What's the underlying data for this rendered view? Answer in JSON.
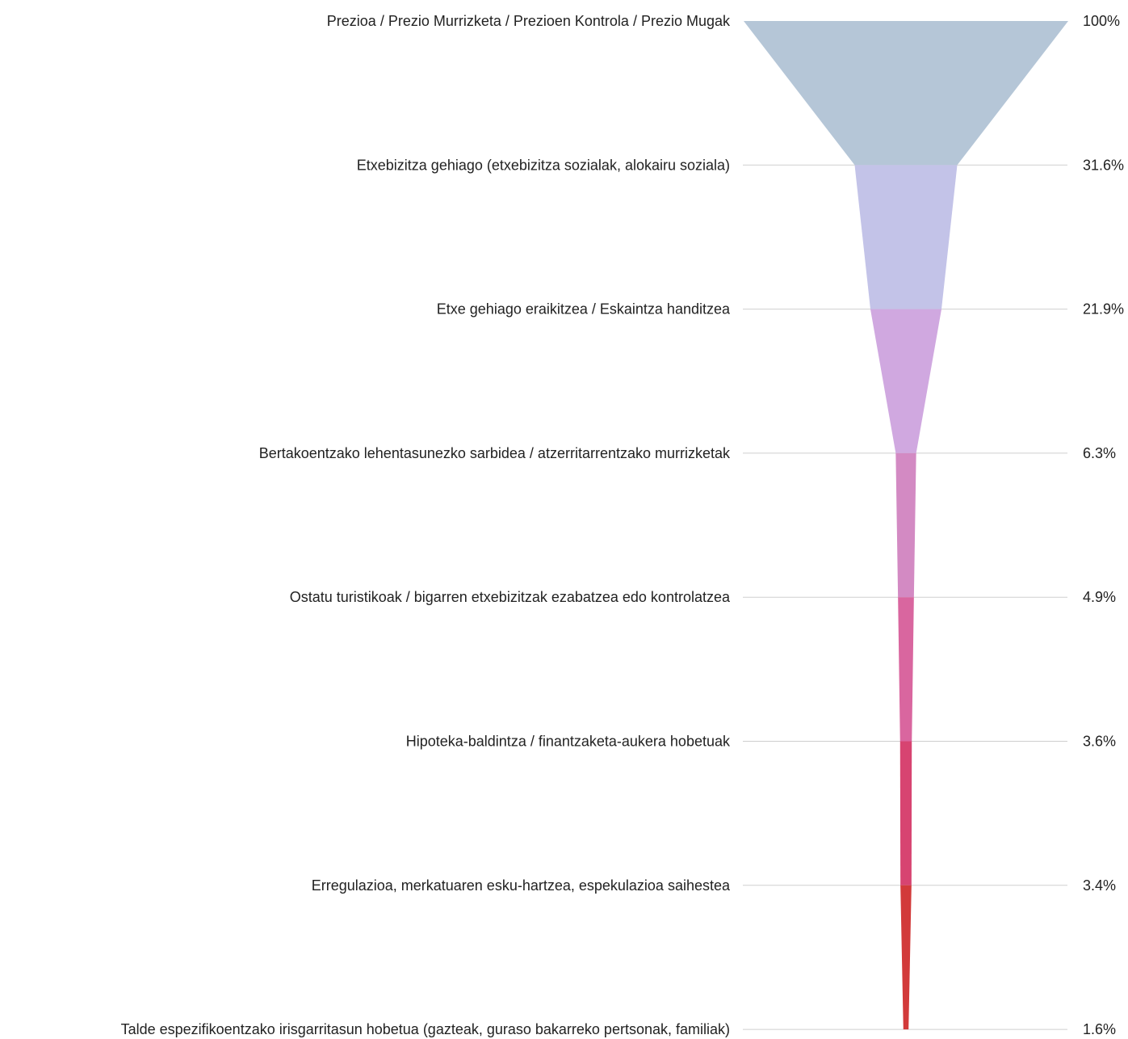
{
  "chart_data": {
    "type": "funnel",
    "title": "",
    "categories": [
      "Prezioa / Prezio Murrizketa / Prezioen Kontrola / Prezio Mugak",
      "Etxebizitza gehiago (etxebizitza sozialak, alokairu soziala)",
      "Etxe gehiago eraikitzea / Eskaintza handitzea",
      "Bertakoentzako lehentasunezko sarbidea / atzerritarrentzako murrizketak",
      "Ostatu turistikoak / bigarren etxebizitzak ezabatzea edo kontrolatzea",
      "Hipoteka-baldintza / finantzaketa-aukera hobetuak",
      "Erregulazioa, merkatuaren esku-hartzea, espekulazioa saihestea",
      "Talde espezifikoentzako irisgarritasun hobetua (gazteak, guraso bakarreko pertsonak, familiak)"
    ],
    "values": [
      100,
      31.6,
      21.9,
      6.3,
      4.9,
      3.6,
      3.4,
      1.6
    ],
    "value_labels": [
      "100%",
      "31.6%",
      "21.9%",
      "6.3%",
      "4.9%",
      "3.6%",
      "3.4%",
      "1.6%"
    ],
    "colors": [
      "#b5c6d7",
      "#c3c3e8",
      "#d0a8e0",
      "#d38ac3",
      "#d9669f",
      "#d74471",
      "#d23a3a",
      "#d23a3a"
    ],
    "guide_color": "#cfcfcf",
    "grid": false,
    "legend": "none"
  }
}
